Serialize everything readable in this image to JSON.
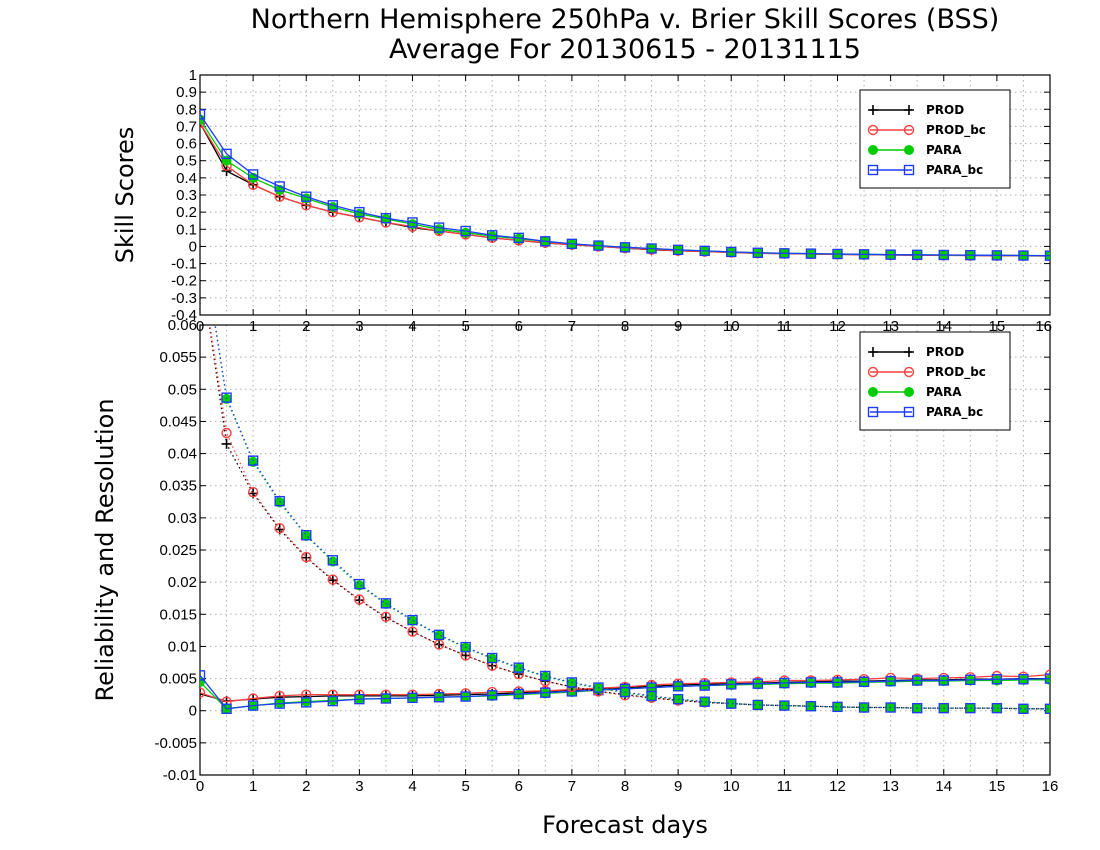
{
  "figure": {
    "title_line1": "Northern Hemisphere 250hPa v. Brier Skill Scores (BSS)",
    "title_line2": "Average For 20130615 - 20131115",
    "xlabel": "Forecast days"
  },
  "chart_data": [
    {
      "type": "line",
      "ylabel": "Skill Scores",
      "xlim": [
        0,
        16
      ],
      "ylim": [
        -0.4,
        1
      ],
      "xticks": [
        "0",
        "1",
        "2",
        "3",
        "4",
        "5",
        "6",
        "7",
        "8",
        "9",
        "10",
        "11",
        "12",
        "13",
        "14",
        "15",
        "16"
      ],
      "yticks": [
        "-0.4",
        "-0.3",
        "-0.2",
        "-0.1",
        "0",
        "0.1",
        "0.2",
        "0.3",
        "0.4",
        "0.5",
        "0.6",
        "0.7",
        "0.8",
        "0.9",
        "1"
      ],
      "grid": true,
      "legend_position": "top-right",
      "x": [
        0,
        0.5,
        1,
        1.5,
        2,
        2.5,
        3,
        3.5,
        4,
        4.5,
        5,
        5.5,
        6,
        6.5,
        7,
        7.5,
        8,
        8.5,
        9,
        9.5,
        10,
        10.5,
        11,
        11.5,
        12,
        12.5,
        13,
        13.5,
        14,
        14.5,
        15,
        15.5,
        16
      ],
      "series": [
        {
          "name": "PROD",
          "color": "#000000",
          "marker": "plus",
          "values": [
            0.72,
            0.44,
            0.36,
            0.29,
            0.24,
            0.2,
            0.17,
            0.14,
            0.11,
            0.09,
            0.07,
            0.05,
            0.035,
            0.02,
            0.01,
            0.0,
            -0.01,
            -0.02,
            -0.025,
            -0.03,
            -0.035,
            -0.04,
            -0.042,
            -0.044,
            -0.046,
            -0.048,
            -0.05,
            -0.051,
            -0.052,
            -0.053,
            -0.054,
            -0.055,
            -0.056
          ]
        },
        {
          "name": "PROD_bc",
          "color": "#ff4040",
          "marker": "circle",
          "values": [
            0.72,
            0.47,
            0.36,
            0.29,
            0.24,
            0.2,
            0.17,
            0.14,
            0.115,
            0.09,
            0.07,
            0.05,
            0.035,
            0.022,
            0.01,
            0.0,
            -0.01,
            -0.018,
            -0.025,
            -0.03,
            -0.035,
            -0.04,
            -0.042,
            -0.044,
            -0.046,
            -0.048,
            -0.05,
            -0.051,
            -0.052,
            -0.053,
            -0.054,
            -0.055,
            -0.056
          ]
        },
        {
          "name": "PARA",
          "color": "#00cc00",
          "marker": "dot",
          "values": [
            0.74,
            0.5,
            0.4,
            0.33,
            0.28,
            0.23,
            0.19,
            0.16,
            0.13,
            0.1,
            0.08,
            0.06,
            0.045,
            0.03,
            0.015,
            0.005,
            -0.005,
            -0.012,
            -0.02,
            -0.026,
            -0.032,
            -0.037,
            -0.04,
            -0.042,
            -0.044,
            -0.046,
            -0.048,
            -0.049,
            -0.05,
            -0.051,
            -0.052,
            -0.053,
            -0.054
          ]
        },
        {
          "name": "PARA_bc",
          "color": "#1e3cff",
          "marker": "square",
          "values": [
            0.77,
            0.54,
            0.42,
            0.35,
            0.29,
            0.24,
            0.2,
            0.165,
            0.14,
            0.11,
            0.09,
            0.065,
            0.05,
            0.03,
            0.015,
            0.005,
            -0.005,
            -0.012,
            -0.02,
            -0.026,
            -0.032,
            -0.037,
            -0.04,
            -0.042,
            -0.044,
            -0.046,
            -0.048,
            -0.049,
            -0.05,
            -0.051,
            -0.052,
            -0.053,
            -0.054
          ]
        }
      ]
    },
    {
      "type": "line",
      "ylabel": "Reliability and Resolution",
      "xlim": [
        0,
        16
      ],
      "ylim": [
        -0.01,
        0.06
      ],
      "xticks": [
        "0",
        "1",
        "2",
        "3",
        "4",
        "5",
        "6",
        "7",
        "8",
        "9",
        "10",
        "11",
        "12",
        "13",
        "14",
        "15",
        "16"
      ],
      "yticks": [
        "-0.01",
        "-0.005",
        "0",
        "0.005",
        "0.01",
        "0.015",
        "0.02",
        "0.025",
        "0.03",
        "0.035",
        "0.04",
        "0.045",
        "0.05",
        "0.055",
        "0.06"
      ],
      "grid": true,
      "legend_position": "top-right",
      "x": [
        0,
        0.5,
        1,
        1.5,
        2,
        2.5,
        3,
        3.5,
        4,
        4.5,
        5,
        5.5,
        6,
        6.5,
        7,
        7.5,
        8,
        8.5,
        9,
        9.5,
        10,
        10.5,
        11,
        11.5,
        12,
        12.5,
        13,
        13.5,
        14,
        14.5,
        15,
        15.5,
        16
      ],
      "series": [
        {
          "name": "PROD",
          "color": "#000000",
          "marker": "plus",
          "line": "solid",
          "values": [
            0.0026,
            0.0015,
            0.0018,
            0.0021,
            0.0022,
            0.0023,
            0.0023,
            0.0023,
            0.0023,
            0.0024,
            0.0025,
            0.0026,
            0.0028,
            0.003,
            0.0032,
            0.0034,
            0.0036,
            0.0038,
            0.004,
            0.0041,
            0.0042,
            0.0043,
            0.0044,
            0.0045,
            0.0046,
            0.0046,
            0.0047,
            0.0048,
            0.0048,
            0.0049,
            0.0049,
            0.005,
            0.005
          ]
        },
        {
          "name": "PROD_bc",
          "color": "#ff4040",
          "marker": "circle",
          "line": "solid",
          "values": [
            0.0028,
            0.0014,
            0.0019,
            0.0023,
            0.0025,
            0.0025,
            0.0025,
            0.0025,
            0.0025,
            0.0026,
            0.0027,
            0.0029,
            0.003,
            0.0031,
            0.0033,
            0.0035,
            0.0037,
            0.004,
            0.0042,
            0.0043,
            0.0044,
            0.0045,
            0.0047,
            0.0047,
            0.0048,
            0.0049,
            0.0051,
            0.005,
            0.0051,
            0.0052,
            0.0054,
            0.0053,
            0.0056
          ]
        },
        {
          "name": "PARA",
          "color": "#00cc00",
          "marker": "dot",
          "line": "solid",
          "values": [
            0.0045,
            0.0003,
            0.0008,
            0.0012,
            0.0014,
            0.0016,
            0.0018,
            0.0019,
            0.002,
            0.0021,
            0.0022,
            0.0023,
            0.0025,
            0.0027,
            0.0029,
            0.0032,
            0.0034,
            0.0036,
            0.0038,
            0.0039,
            0.004,
            0.0041,
            0.0042,
            0.0043,
            0.0043,
            0.0044,
            0.0045,
            0.0046,
            0.0046,
            0.0047,
            0.0047,
            0.0048,
            0.0048
          ]
        },
        {
          "name": "PARA_bc",
          "color": "#1e3cff",
          "marker": "square",
          "line": "solid",
          "values": [
            0.0055,
            0.0003,
            0.0008,
            0.0011,
            0.0013,
            0.0015,
            0.0018,
            0.0019,
            0.002,
            0.0021,
            0.0022,
            0.0024,
            0.0026,
            0.0028,
            0.003,
            0.0032,
            0.0034,
            0.0036,
            0.0038,
            0.0039,
            0.0041,
            0.0042,
            0.0043,
            0.0044,
            0.0044,
            0.0045,
            0.0046,
            0.0047,
            0.0047,
            0.0048,
            0.0049,
            0.0049,
            0.005
          ]
        },
        {
          "name": "PROD",
          "color": "#000000",
          "marker": "plus",
          "line": "dotted",
          "values": [
            0.07,
            0.0415,
            0.0338,
            0.0282,
            0.0238,
            0.0203,
            0.0172,
            0.0145,
            0.0123,
            0.0103,
            0.0086,
            0.007,
            0.0057,
            0.0046,
            0.0037,
            0.003,
            0.0025,
            0.002,
            0.0016,
            0.0013,
            0.0011,
            0.0009,
            0.0008,
            0.0007,
            0.0006,
            0.0005,
            0.0005,
            0.0004,
            0.0004,
            0.0004,
            0.0004,
            0.0003,
            0.0003
          ]
        },
        {
          "name": "PROD_bc",
          "color": "#ff4040",
          "marker": "circle",
          "line": "dotted",
          "values": [
            0.07,
            0.0432,
            0.034,
            0.0284,
            0.0239,
            0.0204,
            0.0173,
            0.0146,
            0.0123,
            0.0103,
            0.0086,
            0.007,
            0.0057,
            0.0046,
            0.0037,
            0.003,
            0.0024,
            0.002,
            0.0016,
            0.0013,
            0.0011,
            0.0009,
            0.0008,
            0.0007,
            0.0006,
            0.0005,
            0.0005,
            0.0004,
            0.0004,
            0.0004,
            0.0004,
            0.0003,
            0.0003
          ]
        },
        {
          "name": "PARA",
          "color": "#00cc00",
          "marker": "dot",
          "line": "dotted",
          "values": [
            0.075,
            0.0485,
            0.0387,
            0.0324,
            0.0272,
            0.0232,
            0.0195,
            0.0166,
            0.014,
            0.0117,
            0.0098,
            0.0081,
            0.0066,
            0.0053,
            0.0043,
            0.0035,
            0.0028,
            0.0022,
            0.0018,
            0.0014,
            0.0011,
            0.0009,
            0.0008,
            0.0007,
            0.0006,
            0.0005,
            0.0005,
            0.0004,
            0.0004,
            0.0004,
            0.0004,
            0.0003,
            0.0003
          ]
        },
        {
          "name": "PARA_bc",
          "color": "#1e3cff",
          "marker": "square",
          "line": "dotted",
          "values": [
            0.075,
            0.0487,
            0.0389,
            0.0326,
            0.0273,
            0.0234,
            0.0197,
            0.0167,
            0.0141,
            0.0118,
            0.0099,
            0.0082,
            0.0067,
            0.0054,
            0.0044,
            0.0036,
            0.0029,
            0.0023,
            0.0018,
            0.0014,
            0.0011,
            0.0009,
            0.0008,
            0.0007,
            0.0006,
            0.0005,
            0.0005,
            0.0004,
            0.0004,
            0.0004,
            0.0004,
            0.0003,
            0.0003
          ]
        }
      ]
    }
  ]
}
